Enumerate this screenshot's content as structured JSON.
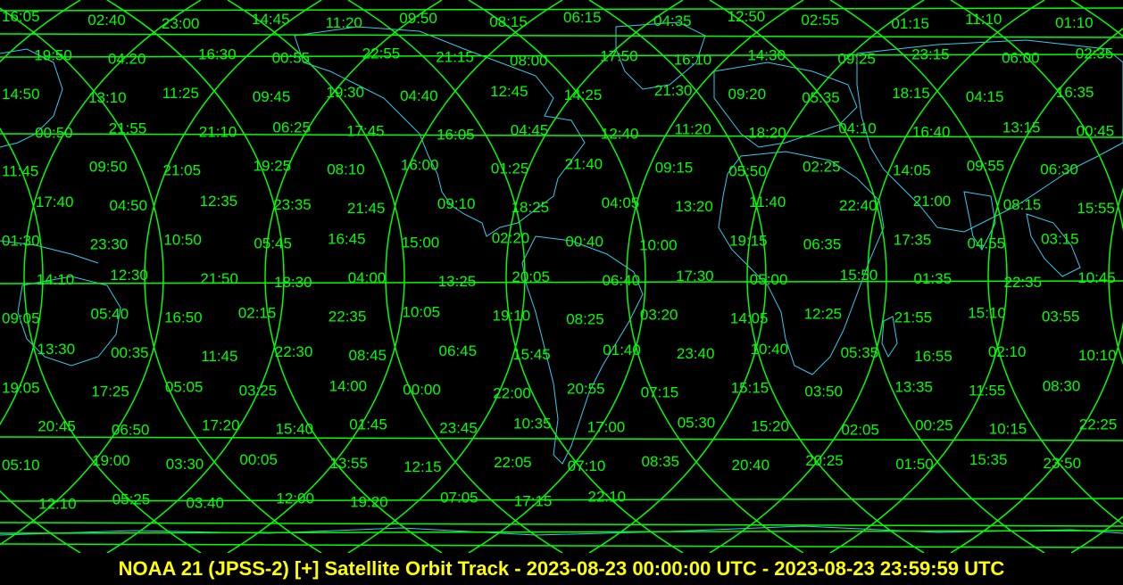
{
  "caption": "NOAA 21 (JPSS-2) [+] Satellite Orbit Track - 2023-08-23 00:00:00 UTC - 2023-08-23 23:59:59 UTC",
  "colors": {
    "track": "#00ff00",
    "coast": "#33ccee",
    "background": "#000000",
    "caption": "#ffff00"
  },
  "map": {
    "projection": "equirectangular",
    "track_crossings_per_pass": 2
  },
  "labels": [
    "16:05",
    "02:40",
    "23:00",
    "14:45",
    "11:20",
    "09:50",
    "08:15",
    "06:15",
    "04:35",
    "12:50",
    "02:55",
    "01:15",
    "11:10",
    "01:10",
    "19:50",
    "04:20",
    "16:30",
    "00:55",
    "22:55",
    "21:15",
    "08:00",
    "17:50",
    "16:10",
    "14:30",
    "09:25",
    "23:15",
    "06:00",
    "02:35",
    "14:50",
    "13:10",
    "11:25",
    "09:45",
    "19:30",
    "04:40",
    "12:45",
    "14:25",
    "21:30",
    "09:20",
    "05:35",
    "18:15",
    "04:15",
    "16:35",
    "00:50",
    "21:55",
    "21:10",
    "06:25",
    "17:45",
    "16:05",
    "04:45",
    "12:40",
    "11:20",
    "18:20",
    "04:10",
    "16:40",
    "13:15",
    "00:45",
    "11:45",
    "09:50",
    "21:05",
    "19:25",
    "08:10",
    "16:00",
    "01:25",
    "21:40",
    "09:15",
    "05:50",
    "02:25",
    "14:05",
    "09:55",
    "06:30",
    "17:40",
    "04:50",
    "12:35",
    "23:35",
    "21:45",
    "09:10",
    "18:25",
    "04:05",
    "13:20",
    "11:40",
    "22:40",
    "21:00",
    "08:15",
    "15:55",
    "01:30",
    "23:30",
    "10:50",
    "05:45",
    "16:45",
    "15:00",
    "02:20",
    "00:40",
    "10:00",
    "19:15",
    "06:35",
    "17:35",
    "04:55",
    "03:15",
    "14:10",
    "12:30",
    "21:50",
    "18:30",
    "04:00",
    "13:25",
    "20:05",
    "06:40",
    "17:30",
    "05:00",
    "15:50",
    "01:35",
    "22:35",
    "10:45",
    "09:05",
    "05:40",
    "16:50",
    "02:15",
    "22:35",
    "10:05",
    "19:10",
    "08:25",
    "03:20",
    "14:05",
    "12:25",
    "21:55",
    "15:10",
    "03:55",
    "13:30",
    "00:35",
    "11:45",
    "22:30",
    "08:45",
    "06:45",
    "15:45",
    "01:40",
    "23:40",
    "10:40",
    "05:35",
    "16:55",
    "02:10",
    "10:10",
    "19:05",
    "17:25",
    "05:05",
    "03:25",
    "14:00",
    "00:00",
    "22:00",
    "20:55",
    "07:15",
    "15:15",
    "03:50",
    "13:35",
    "11:55",
    "08:30",
    "20:45",
    "06:50",
    "17:20",
    "15:40",
    "01:45",
    "23:45",
    "10:35",
    "17:00",
    "05:30",
    "15:20",
    "02:05",
    "00:25",
    "10:15",
    "22:25",
    "05:10",
    "19:00",
    "03:30",
    "00:05",
    "13:55",
    "12:15",
    "22:05",
    "07:10",
    "08:35",
    "20:40",
    "20:25",
    "01:50",
    "15:35",
    "23:50",
    "12:10",
    "05:25",
    "03:40",
    "12:00",
    "19:20",
    "07:05",
    "17:15",
    "22:10"
  ]
}
